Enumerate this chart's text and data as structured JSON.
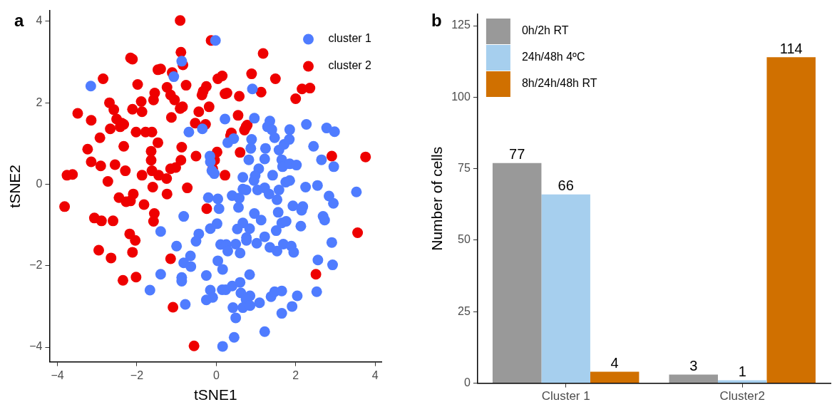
{
  "chart_data": [
    {
      "type": "scatter",
      "title": "a",
      "xlabel": "tSNE1",
      "ylabel": "tSNE2",
      "xlim": [
        -4.2,
        4.16
      ],
      "ylim": [
        -4.36,
        4.26
      ],
      "xticks": [
        -4,
        -2,
        0,
        2,
        4
      ],
      "yticks": [
        -4,
        -2,
        0,
        2,
        4
      ],
      "grid": false,
      "legend": "top right",
      "marker": "circle",
      "series": [
        {
          "name": "cluster 1",
          "color": "#4f7cff",
          "x": [
            -3.16,
            -0.87,
            -1.07,
            -0.02,
            0.22,
            -0.69,
            -0.35,
            0.91,
            0.96,
            1.35,
            1.29,
            1.4,
            1.85,
            2.27,
            2.78,
            2.98,
            -0.16,
            -0.15,
            -0.05,
            -0.2,
            0.04,
            0.07,
            -0.82,
            -1.4,
            -0.15,
            0.02,
            -0.44,
            -0.51,
            -1.0,
            0.11,
            0.29,
            0.44,
            0.89,
            0.87,
            1.24,
            1.47,
            1.58,
            1.71,
            1.84,
            2.45,
            0.82,
            1.22,
            1.65,
            1.67,
            1.85,
            2.02,
            2.65,
            2.96,
            -0.11,
            0.67,
            1.07,
            0.98,
            0.95,
            1.42,
            1.75,
            1.85,
            2.25,
            2.55,
            3.53,
            0.67,
            0.75,
            1.04,
            1.22,
            1.33,
            1.58,
            0.4,
            0.58,
            0.56,
            1.53,
            2.84,
            2.95,
            1.93,
            2.18,
            2.15,
            1.56,
            0.96,
            1.13,
            2.69,
            2.73,
            1.65,
            1.76,
            2.13,
            0.53,
            0.67,
            0.84,
            1.51,
            0.76,
            1.22,
            0.25,
            0.49,
            1.02,
            1.35,
            1.69,
            1.89,
            2.91,
            -0.65,
            -0.82,
            -0.64,
            0.04,
            0.16,
            -1.4,
            -0.87,
            -0.87,
            -0.25,
            0.15,
            -1.67,
            -0.15,
            -0.09,
            -0.25,
            -0.78,
            0.16,
            0.29,
            0.6,
            0.76,
            1.53,
            1.95,
            0.84,
            2.56,
            2.93,
            2.53,
            0.24,
            0.4,
            0.6,
            0.62,
            0.85,
            0.75,
            0.67,
            0.85,
            1.09,
            0.42,
            0.49,
            1.38,
            1.47,
            1.65,
            2.04,
            1.91,
            1.65,
            1.22,
            0.45
          ],
          "values": [
            2.41,
            3.02,
            2.64,
            3.53,
            1.6,
            1.28,
            1.36,
            2.34,
            1.62,
            1.55,
            1.41,
            1.34,
            1.34,
            1.47,
            1.38,
            1.29,
            0.69,
            0.55,
            0.26,
            -0.33,
            -0.36,
            -0.6,
            -0.79,
            -1.16,
            -1.09,
            -0.97,
            -1.22,
            -1.4,
            -1.52,
            -1.48,
            1.02,
            1.12,
            1.1,
            0.88,
            0.88,
            1.14,
            0.84,
            0.98,
            1.1,
            0.93,
            0.6,
            0.62,
            0.6,
            0.43,
            0.5,
            0.47,
            0.6,
            0.43,
            0.33,
            0.17,
            0.38,
            0.21,
            0.09,
            0.22,
            0.05,
            0.09,
            -0.07,
            -0.03,
            -0.19,
            -0.12,
            -0.14,
            -0.14,
            -0.09,
            -0.24,
            -0.14,
            -0.28,
            -0.34,
            -0.57,
            -0.38,
            -0.29,
            -0.47,
            -0.53,
            -0.55,
            -0.64,
            -0.69,
            -0.72,
            -0.88,
            -0.79,
            -0.88,
            -0.95,
            -0.91,
            -1.03,
            -1.1,
            -0.95,
            -1.09,
            -1.14,
            -1.31,
            -1.29,
            -1.48,
            -1.47,
            -1.45,
            -1.55,
            -1.47,
            -1.52,
            -1.43,
            -1.76,
            -1.93,
            -2.02,
            -1.88,
            -2.09,
            -2.21,
            -2.29,
            -2.38,
            -2.24,
            -2.59,
            -2.6,
            -2.6,
            -2.78,
            -2.84,
            -2.95,
            -3.98,
            -1.64,
            -1.69,
            -1.38,
            -1.64,
            -1.67,
            -2.22,
            -1.86,
            -1.98,
            -2.64,
            -2.59,
            -2.5,
            -2.41,
            -2.67,
            -2.74,
            -2.83,
            -3.03,
            -2.98,
            -2.91,
            -3.03,
            -3.28,
            -2.76,
            -2.64,
            -2.62,
            -2.74,
            -3.0,
            -3.17,
            -3.62,
            -3.76
          ]
        },
        {
          "name": "cluster 2",
          "color": "#ee0000",
          "x": [
            -0.91,
            -0.13,
            -2.16,
            -2.11,
            -0.89,
            -0.84,
            -1.47,
            -1.4,
            -1.11,
            -2.85,
            -1.98,
            -1.24,
            -0.76,
            -0.25,
            -0.36,
            -0.33,
            -1.55,
            -1.58,
            0.04,
            0.15,
            0.22,
            -2.69,
            -2.58,
            -1.89,
            -2.11,
            -1.87,
            -1.15,
            -1.05,
            -0.91,
            -0.85,
            -0.18,
            -0.44,
            -3.49,
            -3.15,
            -2.51,
            -2.38,
            -2.33,
            -1.13,
            -0.53,
            -0.27,
            -2.67,
            -2.02,
            -1.78,
            -1.62,
            -2.42,
            -2.93,
            1.18,
            0.89,
            1.49,
            0.27,
            0.58,
            1.13,
            2.16,
            2.36,
            2.0,
            0.55,
            0.75,
            0.78,
            0.38,
            -1.47,
            -3.24,
            -2.33,
            -1.64,
            -0.87,
            -0.51,
            0.02,
            -3.15,
            -2.91,
            -2.55,
            -2.29,
            -1.64,
            -0.89,
            -1.15,
            -1.02,
            -0.04,
            -0.09,
            -3.76,
            -3.62,
            -2.73,
            -1.87,
            -1.62,
            -1.45,
            -1.25,
            -1.6,
            -0.73,
            -1.24,
            -2.45,
            -2.09,
            -2.27,
            -2.16,
            -1.82,
            -3.82,
            -0.24,
            -1.56,
            -1.58,
            -3.07,
            -2.89,
            -2.6,
            -2.18,
            -2.04,
            0.36,
            0.71,
            0.6,
            0.22,
            2.91,
            3.76,
            3.56,
            -2.96,
            -2.65,
            -2.11,
            -1.15,
            -2.35,
            -2.02,
            -1.09,
            -0.56,
            2.51
          ],
          "values": [
            4.02,
            3.53,
            3.1,
            3.07,
            3.24,
            2.93,
            2.81,
            2.83,
            2.74,
            2.59,
            2.45,
            2.38,
            2.43,
            2.4,
            2.19,
            2.28,
            2.24,
            2.07,
            2.59,
            2.66,
            2.22,
            2.0,
            1.83,
            2.03,
            1.84,
            1.78,
            2.19,
            2.07,
            1.86,
            1.9,
            1.9,
            1.78,
            1.74,
            1.57,
            1.6,
            1.5,
            1.47,
            1.64,
            1.5,
            1.47,
            1.36,
            1.28,
            1.28,
            1.28,
            1.41,
            1.14,
            3.21,
            2.71,
            2.59,
            2.24,
            2.16,
            2.26,
            2.34,
            2.36,
            2.1,
            1.69,
            1.41,
            1.45,
            1.26,
            1.02,
            0.86,
            0.93,
            0.81,
            0.91,
            0.69,
            0.79,
            0.55,
            0.45,
            0.48,
            0.33,
            0.59,
            0.59,
            0.38,
            0.41,
            0.59,
            0.38,
            0.22,
            0.24,
            0.07,
            0.22,
            0.33,
            0.22,
            0.14,
            -0.07,
            -0.09,
            -0.24,
            -0.33,
            -0.24,
            -0.43,
            -0.41,
            -0.5,
            -0.55,
            -0.6,
            -0.72,
            -0.91,
            -0.83,
            -0.9,
            -0.9,
            -1.22,
            -1.38,
            1.19,
            1.33,
            0.78,
            0.22,
            0.69,
            0.67,
            -1.19,
            -1.62,
            -1.81,
            -1.67,
            -1.83,
            -2.36,
            -2.28,
            -3.02,
            -3.97,
            -2.21
          ]
        }
      ]
    },
    {
      "type": "bar",
      "title": "b",
      "ylabel": "Number of cells",
      "categories": [
        "Cluster 1",
        "Cluster2"
      ],
      "ylim": [
        0,
        129
      ],
      "yticks": [
        0,
        25,
        50,
        75,
        100,
        125
      ],
      "grid": false,
      "legend": "top left",
      "data_labels": true,
      "series": [
        {
          "name": "0h/2h RT",
          "color": "#999999",
          "values": [
            77,
            3
          ]
        },
        {
          "name": "24h/48h 4ºC",
          "color": "#a6cfee",
          "values": [
            66,
            1
          ]
        },
        {
          "name": "8h/24h/48h RT",
          "color": "#d07000",
          "values": [
            4,
            114
          ]
        }
      ]
    }
  ]
}
